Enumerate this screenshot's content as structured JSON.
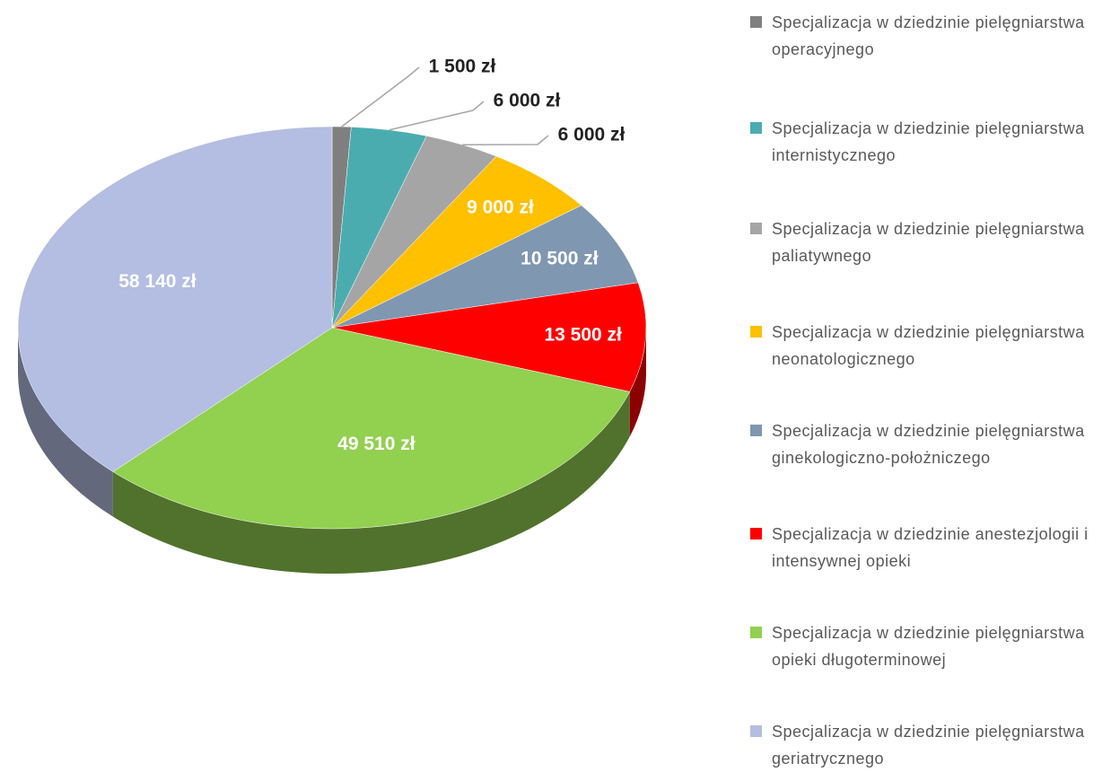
{
  "chart_data": {
    "type": "pie",
    "three_d": true,
    "categories": [
      "Specjalizacja w dziedzinie pielęgniarstwa operacyjnego",
      "Specjalizacja w dziedzinie pielęgniarstwa internistycznego",
      "Specjalizacja w dziedzinie pielęgniarstwa paliatywnego",
      "Specjalizacja w dziedzinie pielęgniarstwa neonatologicznego",
      "Specjalizacja w dziedzinie pielęgniarstwa ginekologiczno-położniczego",
      "Specjalizacja w dziedzinie anestezjologii i intensywnej opieki",
      "Specjalizacja w dziedzinie pielęgniarstwa opieki długoterminowej",
      "Specjalizacja w dziedzinie pielęgniarstwa geriatrycznego"
    ],
    "values": [
      1500,
      6000,
      6000,
      9000,
      10500,
      13500,
      49510,
      58140
    ],
    "value_labels": [
      "1 500 zł",
      "6 000 zł",
      "6 000 zł",
      "9 000 zł",
      "10 500 zł",
      "13 500 zł",
      "49 510 zł",
      "58 140 zł"
    ],
    "colors": [
      "#7f7f7f",
      "#4bacb0",
      "#a5a5a5",
      "#ffc000",
      "#8097b1",
      "#ff0000",
      "#92d050",
      "#b4bde2"
    ],
    "legend": "right"
  }
}
